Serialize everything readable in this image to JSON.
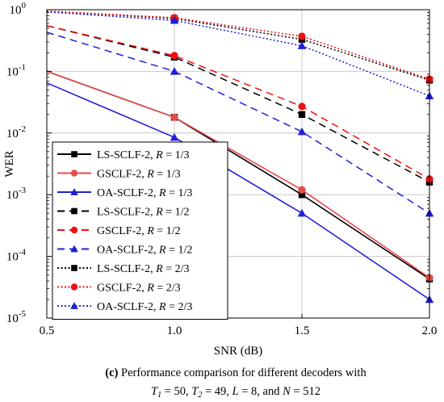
{
  "chart_data": {
    "type": "line",
    "xlabel": "SNR (dB)",
    "ylabel": "WER",
    "x": [
      0.5,
      1.0,
      1.5,
      2.0
    ],
    "xlim": [
      0.5,
      2.0
    ],
    "ylim": [
      1e-05,
      1
    ],
    "yscale": "log",
    "x_ticks": [
      "0.5",
      "1.0",
      "1.5",
      "2.0"
    ],
    "y_ticks": [
      {
        "value": 1,
        "base": "10",
        "exp": "0"
      },
      {
        "value": 0.1,
        "base": "10",
        "exp": "-1"
      },
      {
        "value": 0.01,
        "base": "10",
        "exp": "-2"
      },
      {
        "value": 0.001,
        "base": "10",
        "exp": "-3"
      },
      {
        "value": 0.0001,
        "base": "10",
        "exp": "-4"
      },
      {
        "value": 1e-05,
        "base": "10",
        "exp": "-5"
      }
    ],
    "grid": true,
    "legend_position": "lower-left",
    "series": [
      {
        "name": "LS-SCLF-2, ",
        "rate": "1/3",
        "color": "#000000",
        "dash": "solid",
        "marker": "square",
        "values": [
          0.1,
          0.018,
          0.001,
          4.3e-05
        ]
      },
      {
        "name": "GSCLF-2, ",
        "rate": "1/3",
        "color": "#e64b4b",
        "dash": "solid",
        "marker": "circle",
        "values": [
          0.1,
          0.018,
          0.0012,
          4.5e-05
        ]
      },
      {
        "name": "OA-SCLF-2, ",
        "rate": "1/3",
        "color": "#1f1fd6",
        "dash": "solid",
        "marker": "triangle",
        "values": [
          0.065,
          0.0085,
          0.0005,
          2e-05
        ]
      },
      {
        "name": "LS-SCLF-2, ",
        "rate": "1/2",
        "color": "#000000",
        "dash": "dashed",
        "marker": "square",
        "values": [
          0.55,
          0.17,
          0.02,
          0.0016
        ]
      },
      {
        "name": "GSCLF-2, ",
        "rate": "1/2",
        "color": "#ee1111",
        "dash": "dashed",
        "marker": "circle",
        "values": [
          0.55,
          0.18,
          0.027,
          0.0018
        ]
      },
      {
        "name": "OA-SCLF-2, ",
        "rate": "1/2",
        "color": "#1f1fd6",
        "dash": "dashed",
        "marker": "triangle",
        "values": [
          0.43,
          0.1,
          0.0105,
          0.0005
        ]
      },
      {
        "name": "LS-SCLF-2, ",
        "rate": "2/3",
        "color": "#000000",
        "dash": "dotted",
        "marker": "square",
        "values": [
          0.95,
          0.72,
          0.33,
          0.072
        ]
      },
      {
        "name": "GSCLF-2, ",
        "rate": "2/3",
        "color": "#ee1111",
        "dash": "dotted",
        "marker": "circle",
        "values": [
          0.95,
          0.74,
          0.37,
          0.075
        ]
      },
      {
        "name": "OA-SCLF-2, ",
        "rate": "2/3",
        "color": "#1f1fd6",
        "dash": "dotted",
        "marker": "triangle",
        "values": [
          0.92,
          0.67,
          0.26,
          0.04
        ]
      }
    ]
  },
  "legend_rate_symbol": "R",
  "legend_equals": " = ",
  "caption": {
    "line1_label": "(c)",
    "line1_text": " Performance comparison for different decoders with",
    "line2": {
      "t1_sym": "T",
      "t1_sub": "1",
      "t1_val": " = 50, ",
      "t2_sym": "T",
      "t2_sub": "2",
      "t2_val": " = 49, ",
      "l_sym": "L",
      "l_val": " = 8, and ",
      "n_sym": "N",
      "n_val": " = 512"
    }
  }
}
